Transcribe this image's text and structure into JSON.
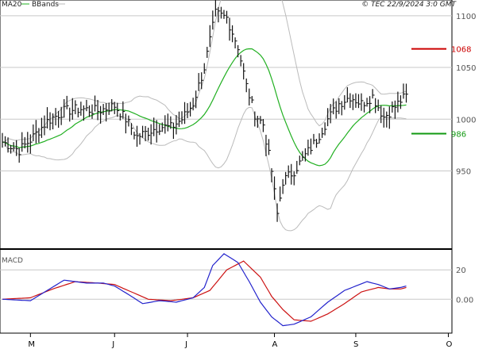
{
  "header": {
    "legend_ma": "MA20",
    "legend_bb": "BBands",
    "copyright": "© TEC 22/9/2024 3:0 GMT"
  },
  "colors": {
    "price": "#111111",
    "ma": "#22b022",
    "bands": "#bbbbbb",
    "grid": "#c8c8c8",
    "resistance": "#cc0000",
    "support": "#119911",
    "macd": "#2222cc",
    "signal": "#cc1111"
  },
  "chart_data": [
    {
      "type": "bar",
      "title": "",
      "ylim": [
        876,
        1106
      ],
      "yticks": [
        {
          "value": 1100,
          "label": "1100"
        },
        {
          "value": 1050,
          "label": "1050"
        },
        {
          "value": 1000,
          "label": "1000"
        },
        {
          "value": 950,
          "label": "950"
        }
      ],
      "xlim": [
        0,
        160
      ],
      "xticks": [
        {
          "x": 10,
          "label": "M"
        },
        {
          "x": 40,
          "label": "J"
        },
        {
          "x": 66,
          "label": "J"
        },
        {
          "x": 97,
          "label": "A"
        },
        {
          "x": 126,
          "label": "S"
        },
        {
          "x": 159,
          "label": "O"
        }
      ],
      "levels": [
        {
          "name": "resistance",
          "value": 1068,
          "label": "1068"
        },
        {
          "name": "support",
          "value": 986,
          "label": "986"
        }
      ],
      "ohlc_close_anchors": [
        [
          0,
          978
        ],
        [
          6,
          970
        ],
        [
          10,
          980
        ],
        [
          16,
          998
        ],
        [
          22,
          1008
        ],
        [
          28,
          1010
        ],
        [
          34,
          1008
        ],
        [
          40,
          1013
        ],
        [
          44,
          1000
        ],
        [
          48,
          983
        ],
        [
          52,
          988
        ],
        [
          56,
          993
        ],
        [
          60,
          992
        ],
        [
          64,
          1000
        ],
        [
          68,
          1015
        ],
        [
          72,
          1050
        ],
        [
          76,
          1102
        ],
        [
          80,
          1098
        ],
        [
          84,
          1070
        ],
        [
          87,
          1032
        ],
        [
          90,
          1005
        ],
        [
          93,
          995
        ],
        [
          96,
          950
        ],
        [
          98,
          908
        ],
        [
          100,
          940
        ],
        [
          104,
          950
        ],
        [
          108,
          965
        ],
        [
          112,
          980
        ],
        [
          116,
          1000
        ],
        [
          120,
          1015
        ],
        [
          124,
          1022
        ],
        [
          128,
          1015
        ],
        [
          132,
          1022
        ],
        [
          136,
          1002
        ],
        [
          140,
          1012
        ],
        [
          142,
          1018
        ],
        [
          144,
          1022
        ]
      ]
    },
    {
      "type": "line",
      "title": "MACD",
      "ylim": [
        -22,
        32
      ],
      "yticks": [
        {
          "value": 20,
          "label": "20"
        },
        {
          "value": 0,
          "label": "0.00"
        }
      ],
      "macd_anchors": [
        [
          0,
          0
        ],
        [
          10,
          -1
        ],
        [
          16,
          6
        ],
        [
          22,
          13
        ],
        [
          30,
          11
        ],
        [
          36,
          11
        ],
        [
          40,
          9
        ],
        [
          46,
          2
        ],
        [
          50,
          -3
        ],
        [
          56,
          -1
        ],
        [
          62,
          -2
        ],
        [
          68,
          1
        ],
        [
          72,
          8
        ],
        [
          75,
          23
        ],
        [
          79,
          31
        ],
        [
          84,
          25
        ],
        [
          88,
          12
        ],
        [
          92,
          -2
        ],
        [
          96,
          -12
        ],
        [
          100,
          -18
        ],
        [
          104,
          -17
        ],
        [
          110,
          -12
        ],
        [
          116,
          -2
        ],
        [
          122,
          6
        ],
        [
          126,
          9
        ],
        [
          130,
          12
        ],
        [
          134,
          10
        ],
        [
          138,
          7
        ],
        [
          142,
          8
        ],
        [
          144,
          9
        ]
      ],
      "signal_anchors": [
        [
          0,
          0
        ],
        [
          10,
          1
        ],
        [
          18,
          7
        ],
        [
          26,
          12
        ],
        [
          34,
          11
        ],
        [
          40,
          10
        ],
        [
          46,
          5
        ],
        [
          52,
          0
        ],
        [
          60,
          -1
        ],
        [
          68,
          1
        ],
        [
          74,
          6
        ],
        [
          80,
          20
        ],
        [
          86,
          26
        ],
        [
          92,
          15
        ],
        [
          96,
          2
        ],
        [
          100,
          -7
        ],
        [
          104,
          -14
        ],
        [
          110,
          -15
        ],
        [
          116,
          -10
        ],
        [
          122,
          -3
        ],
        [
          128,
          5
        ],
        [
          134,
          8
        ],
        [
          138,
          7
        ],
        [
          142,
          7
        ],
        [
          144,
          8
        ]
      ]
    }
  ]
}
